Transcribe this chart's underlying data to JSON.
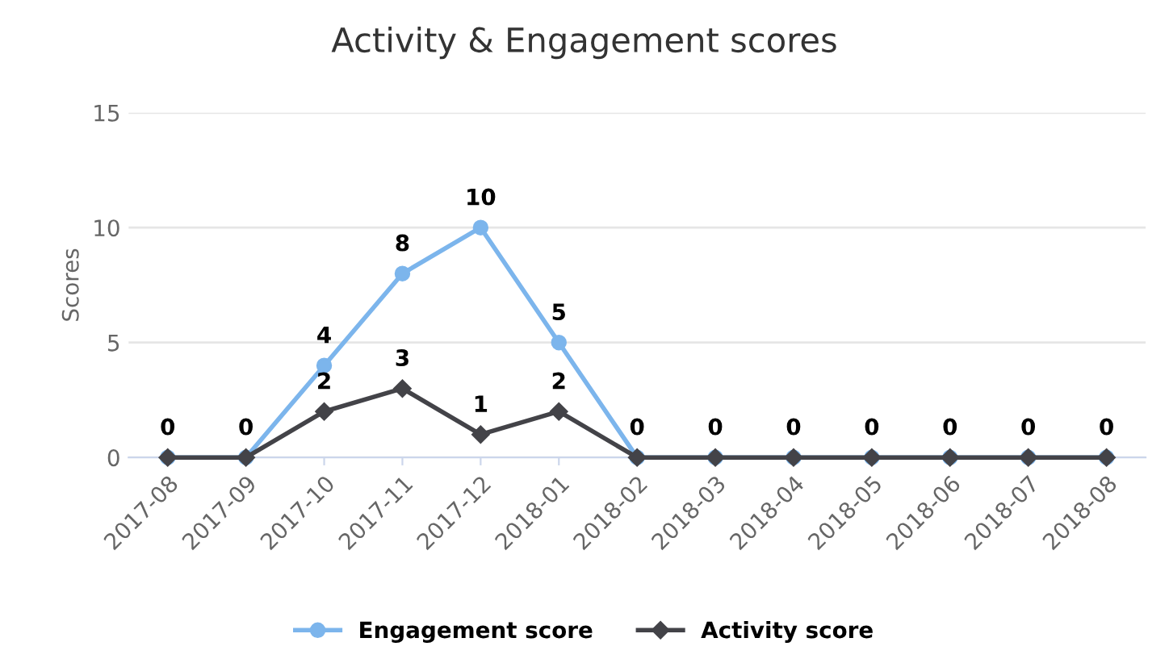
{
  "chart_data": {
    "type": "line",
    "title": "Activity & Engagement scores",
    "ylabel": "Scores",
    "categories": [
      "2017-08",
      "2017-09",
      "2017-10",
      "2017-11",
      "2017-12",
      "2018-01",
      "2018-02",
      "2018-03",
      "2018-04",
      "2018-05",
      "2018-06",
      "2018-07",
      "2018-08"
    ],
    "series": [
      {
        "name": "Engagement score",
        "color": "#7cb5ec",
        "marker": "circle",
        "values": [
          0,
          0,
          4,
          8,
          10,
          5,
          0,
          0,
          0,
          0,
          0,
          0,
          0
        ],
        "value_labels": [
          "0",
          "0",
          "4",
          "8",
          "10",
          "5",
          "0",
          "0",
          "0",
          "0",
          "0",
          "0",
          "0"
        ]
      },
      {
        "name": "Activity score",
        "color": "#434348",
        "marker": "diamond",
        "values": [
          0,
          0,
          2,
          3,
          1,
          2,
          0,
          0,
          0,
          0,
          0,
          0,
          0
        ],
        "value_labels": [
          null,
          null,
          "2",
          "3",
          "1",
          "2",
          null,
          null,
          null,
          null,
          null,
          null,
          null
        ]
      }
    ],
    "ylim": [
      0,
      15
    ],
    "yticks": [
      0,
      5,
      10,
      15
    ],
    "grid": "y",
    "legend": "bottom"
  }
}
